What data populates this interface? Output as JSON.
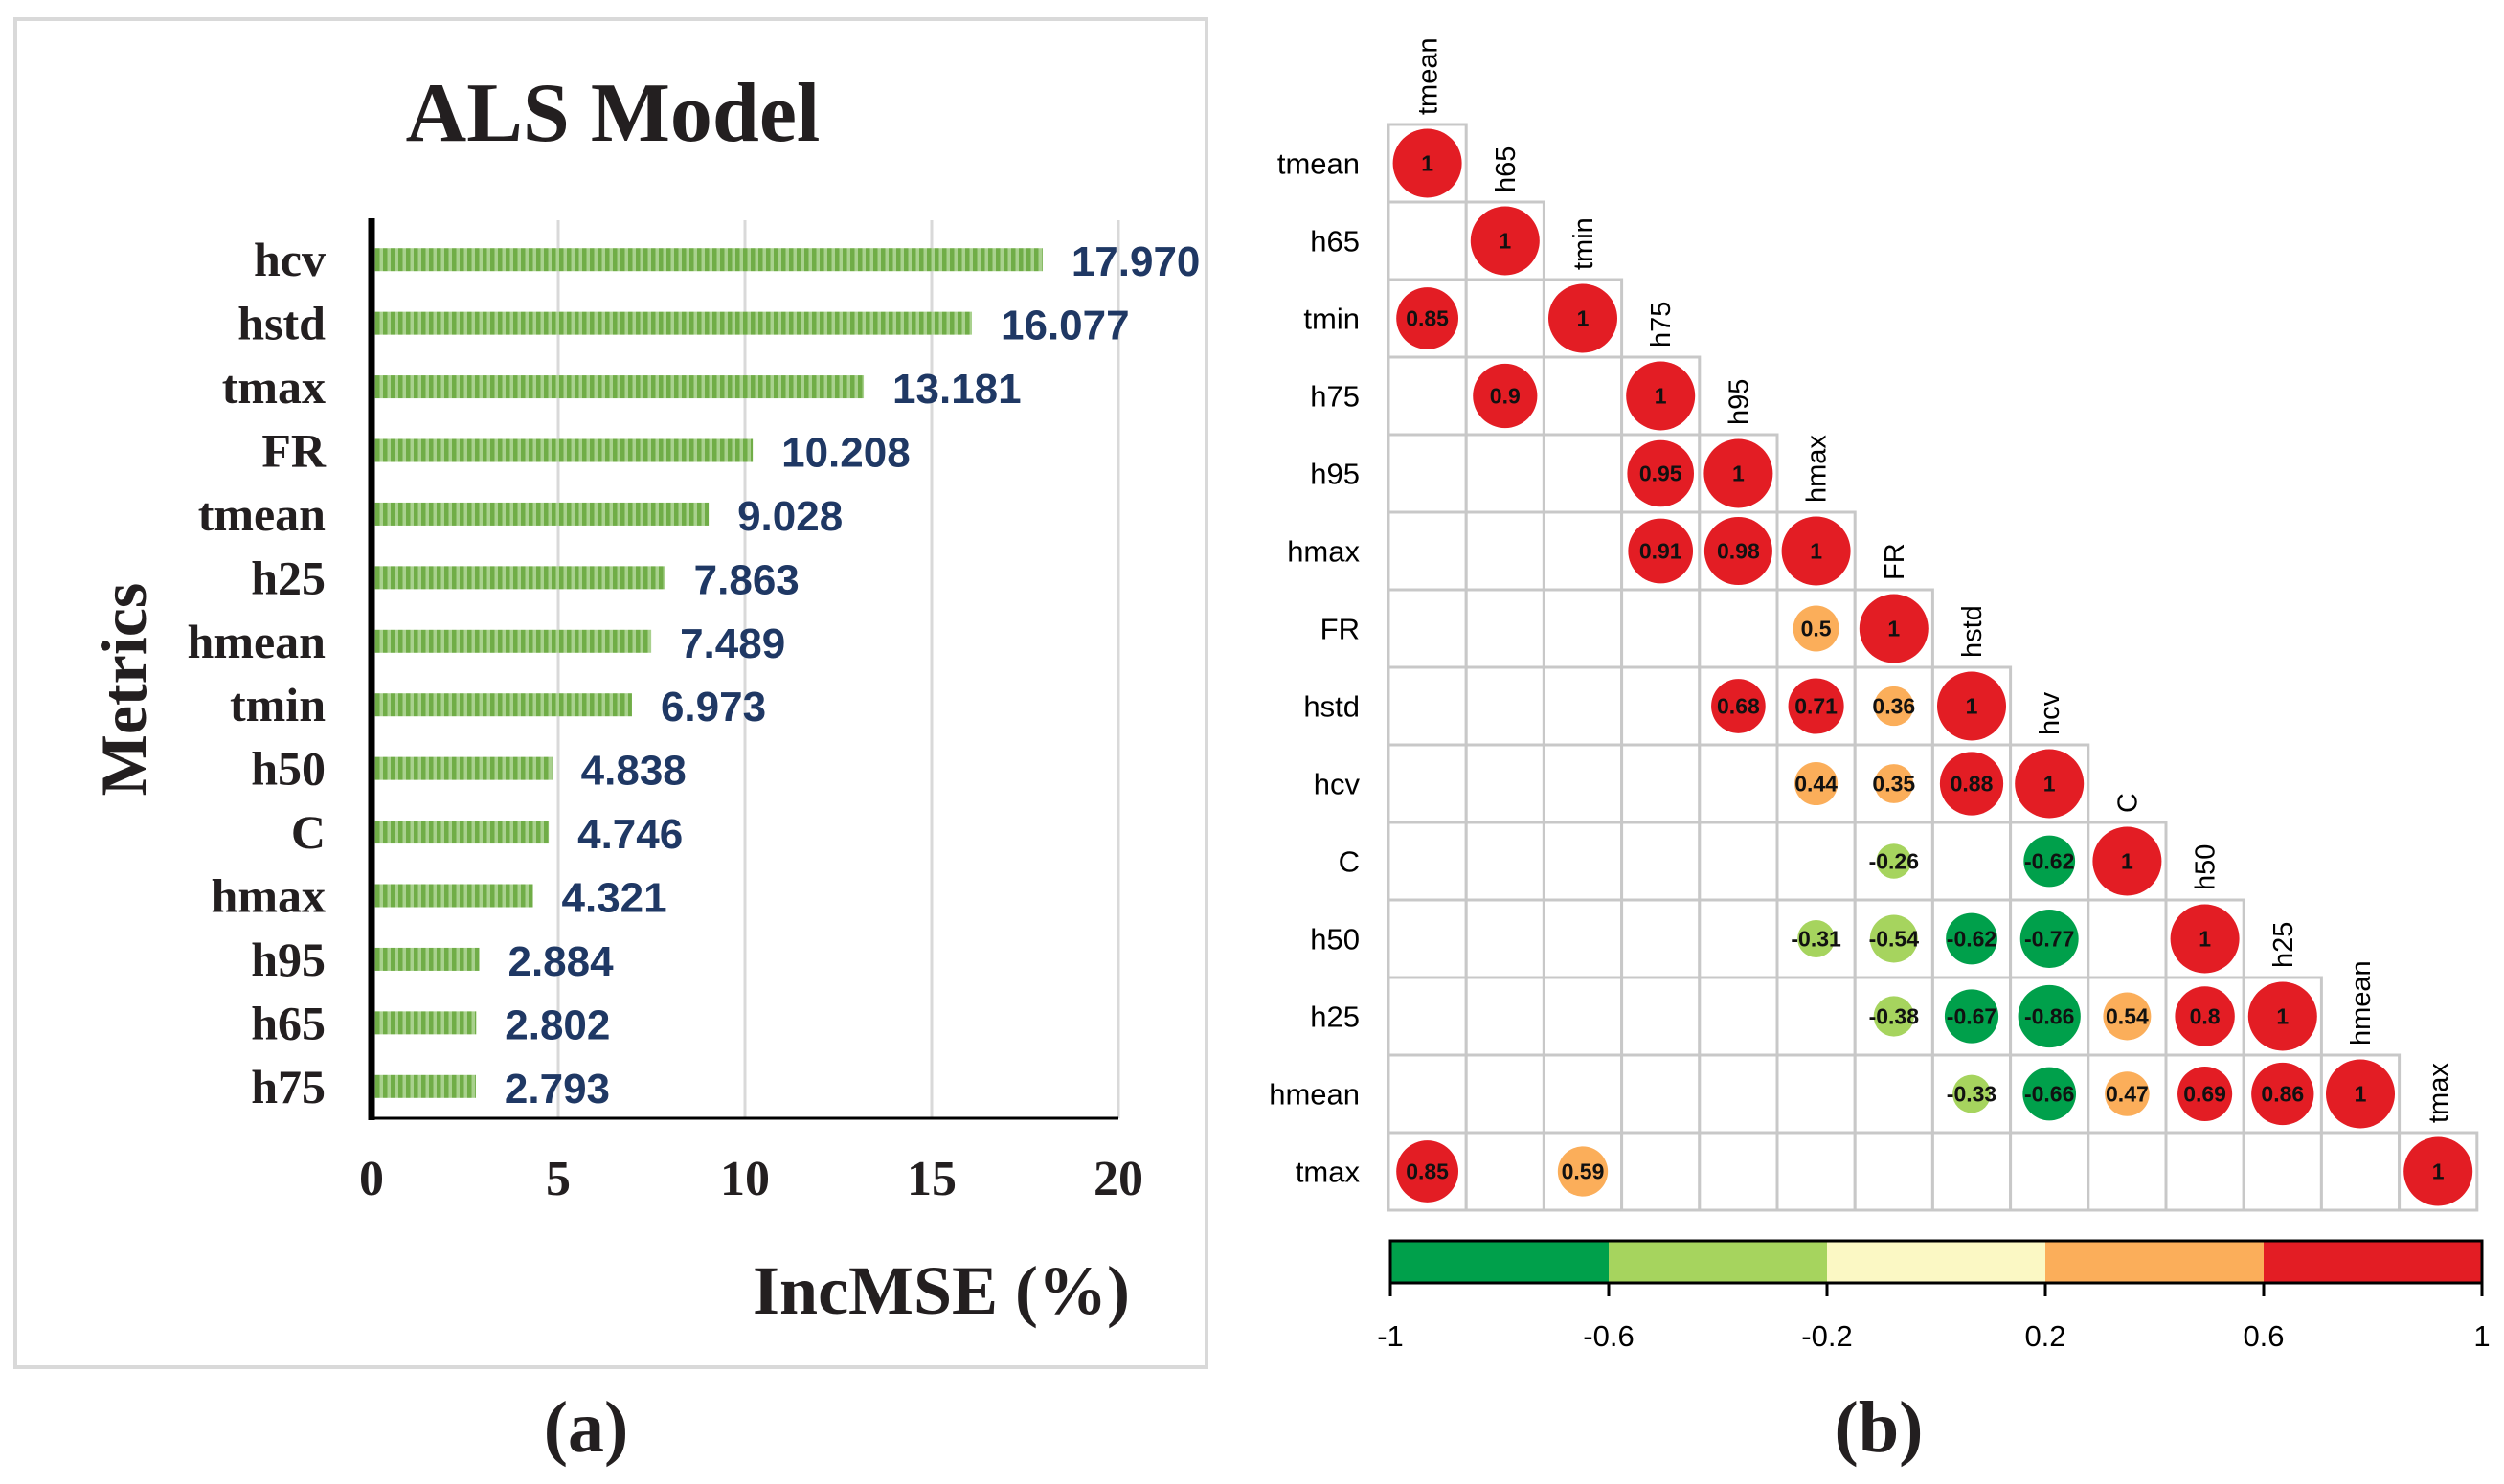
{
  "colors": {
    "bar": "#70ad47",
    "bar_stripe": "#a9d18e",
    "value_text": "#1f3864",
    "axis": "#000000",
    "grid": "#d9d9d9",
    "corr_grid": "#c8c8c8"
  },
  "chart_data": [
    {
      "type": "bar",
      "orientation": "horizontal",
      "title": "ALS Model",
      "xlabel": "IncMSE (%)",
      "ylabel": "Metrics",
      "panel_label": "(a)",
      "xlim": [
        0,
        20
      ],
      "xticks": [
        "0",
        "5",
        "10",
        "15",
        "20"
      ],
      "categories": [
        "hcv",
        "hstd",
        "tmax",
        "FR",
        "tmean",
        "h25",
        "hmean",
        "tmin",
        "h50",
        "C",
        "hmax",
        "h95",
        "h65",
        "h75"
      ],
      "values": [
        17.97,
        16.077,
        13.181,
        10.208,
        9.028,
        7.863,
        7.489,
        6.973,
        4.838,
        4.746,
        4.321,
        2.884,
        2.802,
        2.793
      ],
      "value_labels": [
        "17.970",
        "16.077",
        "13.181",
        "10.208",
        "9.028",
        "7.863",
        "7.489",
        "6.973",
        "4.838",
        "4.746",
        "4.321",
        "2.884",
        "2.802",
        "2.793"
      ]
    },
    {
      "type": "heatmap",
      "style": "lower-triangular correlation matrix with circles",
      "panel_label": "(b)",
      "variables": [
        "tmean",
        "h65",
        "tmin",
        "h75",
        "h95",
        "hmax",
        "FR",
        "hstd",
        "hcv",
        "C",
        "h50",
        "h25",
        "hmean",
        "tmax"
      ],
      "cells": [
        {
          "row": 0,
          "col": 0,
          "value": 1,
          "label": "1"
        },
        {
          "row": 1,
          "col": 1,
          "value": 1,
          "label": "1"
        },
        {
          "row": 2,
          "col": 0,
          "value": 0.85,
          "label": "0.85"
        },
        {
          "row": 2,
          "col": 2,
          "value": 1,
          "label": "1"
        },
        {
          "row": 3,
          "col": 1,
          "value": 0.9,
          "label": "0.9"
        },
        {
          "row": 3,
          "col": 3,
          "value": 1,
          "label": "1"
        },
        {
          "row": 4,
          "col": 3,
          "value": 0.95,
          "label": "0.95"
        },
        {
          "row": 4,
          "col": 4,
          "value": 1,
          "label": "1"
        },
        {
          "row": 5,
          "col": 3,
          "value": 0.91,
          "label": "0.91"
        },
        {
          "row": 5,
          "col": 4,
          "value": 0.98,
          "label": "0.98"
        },
        {
          "row": 5,
          "col": 5,
          "value": 1,
          "label": "1"
        },
        {
          "row": 6,
          "col": 5,
          "value": 0.5,
          "label": "0.5"
        },
        {
          "row": 6,
          "col": 6,
          "value": 1,
          "label": "1"
        },
        {
          "row": 7,
          "col": 4,
          "value": 0.68,
          "label": "0.68"
        },
        {
          "row": 7,
          "col": 5,
          "value": 0.71,
          "label": "0.71"
        },
        {
          "row": 7,
          "col": 6,
          "value": 0.36,
          "label": "0.36"
        },
        {
          "row": 7,
          "col": 7,
          "value": 1,
          "label": "1"
        },
        {
          "row": 8,
          "col": 5,
          "value": 0.44,
          "label": "0.44"
        },
        {
          "row": 8,
          "col": 6,
          "value": 0.35,
          "label": "0.35"
        },
        {
          "row": 8,
          "col": 7,
          "value": 0.88,
          "label": "0.88"
        },
        {
          "row": 8,
          "col": 8,
          "value": 1,
          "label": "1"
        },
        {
          "row": 9,
          "col": 6,
          "value": -0.26,
          "label": "-0.26"
        },
        {
          "row": 9,
          "col": 8,
          "value": -0.62,
          "label": "-0.62"
        },
        {
          "row": 9,
          "col": 9,
          "value": 1,
          "label": "1"
        },
        {
          "row": 10,
          "col": 5,
          "value": -0.31,
          "label": "-0.31"
        },
        {
          "row": 10,
          "col": 6,
          "value": -0.54,
          "label": "-0.54"
        },
        {
          "row": 10,
          "col": 7,
          "value": -0.62,
          "label": "-0.62"
        },
        {
          "row": 10,
          "col": 8,
          "value": -0.77,
          "label": "-0.77"
        },
        {
          "row": 10,
          "col": 10,
          "value": 1,
          "label": "1"
        },
        {
          "row": 11,
          "col": 6,
          "value": -0.38,
          "label": "-0.38"
        },
        {
          "row": 11,
          "col": 7,
          "value": -0.67,
          "label": "-0.67"
        },
        {
          "row": 11,
          "col": 8,
          "value": -0.86,
          "label": "-0.86"
        },
        {
          "row": 11,
          "col": 9,
          "value": 0.54,
          "label": "0.54"
        },
        {
          "row": 11,
          "col": 10,
          "value": 0.8,
          "label": "0.8"
        },
        {
          "row": 11,
          "col": 11,
          "value": 1,
          "label": "1"
        },
        {
          "row": 12,
          "col": 7,
          "value": -0.33,
          "label": "-0.33"
        },
        {
          "row": 12,
          "col": 8,
          "value": -0.66,
          "label": "-0.66"
        },
        {
          "row": 12,
          "col": 9,
          "value": 0.47,
          "label": "0.47"
        },
        {
          "row": 12,
          "col": 10,
          "value": 0.69,
          "label": "0.69"
        },
        {
          "row": 12,
          "col": 11,
          "value": 0.86,
          "label": "0.86"
        },
        {
          "row": 12,
          "col": 12,
          "value": 1,
          "label": "1"
        },
        {
          "row": 13,
          "col": 0,
          "value": 0.85,
          "label": "0.85"
        },
        {
          "row": 13,
          "col": 2,
          "value": 0.59,
          "label": "0.59"
        },
        {
          "row": 13,
          "col": 13,
          "value": 1,
          "label": "1"
        }
      ],
      "colorbar": {
        "ticks": [
          "-1",
          "-0.6",
          "-0.2",
          "0.2",
          "0.6",
          "1"
        ],
        "bins": [
          {
            "min": -1,
            "max": -0.6,
            "color": "#00a04b"
          },
          {
            "min": -0.6,
            "max": -0.2,
            "color": "#a6d45e"
          },
          {
            "min": -0.2,
            "max": 0.2,
            "color": "#fbf8c4"
          },
          {
            "min": 0.2,
            "max": 0.6,
            "color": "#fbae5a"
          },
          {
            "min": 0.6,
            "max": 1,
            "color": "#e31d24"
          }
        ]
      }
    }
  ]
}
